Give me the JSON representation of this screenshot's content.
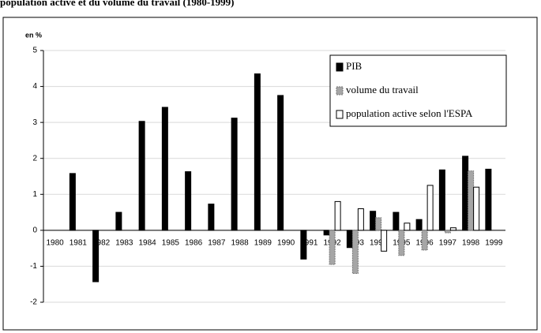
{
  "chart_data": {
    "type": "bar",
    "title": "population active et du volume du travail (1980-1999)",
    "y_label": "en %",
    "categories": [
      "1980",
      "1981",
      "1982",
      "1983",
      "1984",
      "1985",
      "1986",
      "1987",
      "1988",
      "1989",
      "1990",
      "1991",
      "1992",
      "1993",
      "1994",
      "1995",
      "1996",
      "1997",
      "1998",
      "1999"
    ],
    "series": [
      {
        "name": "PIB",
        "color": "#000000",
        "values": [
          null,
          1.58,
          -1.43,
          0.5,
          3.03,
          3.42,
          1.63,
          0.73,
          3.12,
          4.35,
          3.75,
          -0.8,
          -0.13,
          -0.48,
          0.53,
          0.5,
          0.3,
          1.68,
          2.06,
          1.7
        ]
      },
      {
        "name": "volume du travail",
        "color": "#a6a6a6",
        "values": [
          null,
          null,
          null,
          null,
          null,
          null,
          null,
          null,
          null,
          null,
          null,
          null,
          -0.95,
          -1.2,
          0.35,
          -0.7,
          -0.55,
          -0.07,
          1.65,
          null
        ]
      },
      {
        "name": "population active selon l'ESPA",
        "color": "#ffffff",
        "values": [
          null,
          null,
          null,
          null,
          null,
          null,
          null,
          null,
          null,
          null,
          null,
          null,
          0.8,
          0.6,
          -0.58,
          0.2,
          1.25,
          0.07,
          1.2,
          null
        ]
      }
    ],
    "ylim": [
      -2,
      5
    ],
    "yticks": [
      -2,
      -1,
      0,
      1,
      2,
      3,
      4,
      5
    ],
    "grid": true
  }
}
